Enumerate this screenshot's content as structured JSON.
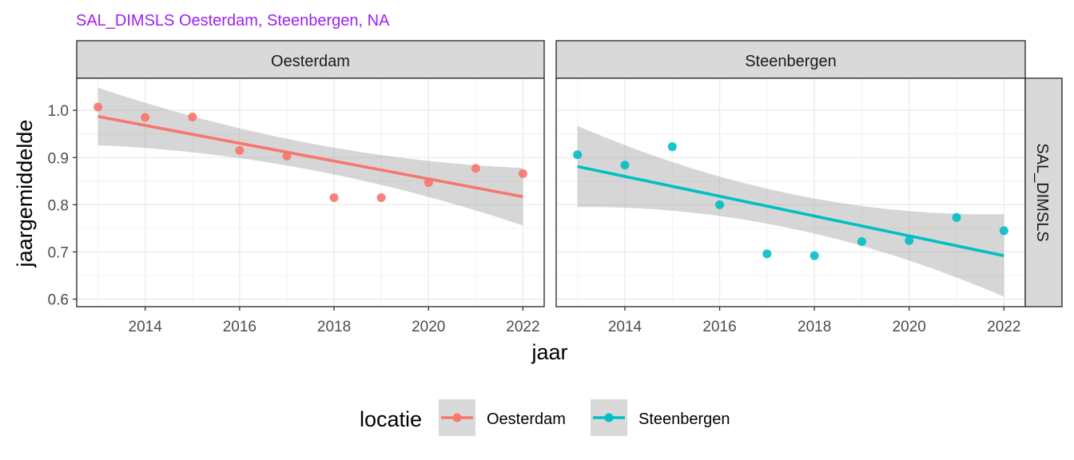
{
  "chart_data": {
    "type": "scatter",
    "title": "SAL_DIMSLS Oesterdam, Steenbergen, NA",
    "title_color": "#a020f0",
    "xlabel": "jaar",
    "ylabel": "jaargemiddelde",
    "row_strip": "SAL_DIMSLS",
    "x_ticks": [
      2014,
      2016,
      2018,
      2020,
      2022
    ],
    "y_ticks": [
      0.6,
      0.7,
      0.8,
      0.9,
      1.0
    ],
    "y_tick_labels": [
      "0.6",
      "0.7",
      "0.8",
      "0.9",
      "1.0"
    ],
    "xlim": [
      2012.55,
      2022.45
    ],
    "ylim": [
      0.584,
      1.068
    ],
    "legend": {
      "title": "locatie",
      "position": "bottom",
      "items": [
        "Oesterdam",
        "Steenbergen"
      ]
    },
    "panels": [
      {
        "name": "Oesterdam",
        "color": "#f8766d",
        "x": [
          2013,
          2014,
          2015,
          2016,
          2017,
          2018,
          2019,
          2020,
          2021,
          2022
        ],
        "y": [
          1.007,
          0.985,
          0.986,
          0.915,
          0.903,
          0.815,
          0.815,
          0.847,
          0.877,
          0.866
        ],
        "fit": {
          "x": [
            2013,
            2022
          ],
          "y": [
            0.987,
            0.817
          ]
        },
        "ci": [
          {
            "x": 2013,
            "lo": 0.926,
            "hi": 1.048
          },
          {
            "x": 2017.5,
            "lo": 0.874,
            "hi": 0.93
          },
          {
            "x": 2022,
            "lo": 0.756,
            "hi": 0.878
          }
        ]
      },
      {
        "name": "Steenbergen",
        "color": "#00bfc4",
        "x": [
          2013,
          2014,
          2015,
          2016,
          2017,
          2018,
          2019,
          2020,
          2021,
          2022
        ],
        "y": [
          0.906,
          0.884,
          0.923,
          0.8,
          0.696,
          0.692,
          0.722,
          0.724,
          0.773,
          0.745
        ],
        "fit": {
          "x": [
            2013,
            2022
          ],
          "y": [
            0.881,
            0.692
          ]
        },
        "ci": [
          {
            "x": 2013,
            "lo": 0.795,
            "hi": 0.967
          },
          {
            "x": 2017.5,
            "lo": 0.75,
            "hi": 0.823
          },
          {
            "x": 2022,
            "lo": 0.605,
            "hi": 0.78
          }
        ]
      }
    ]
  }
}
